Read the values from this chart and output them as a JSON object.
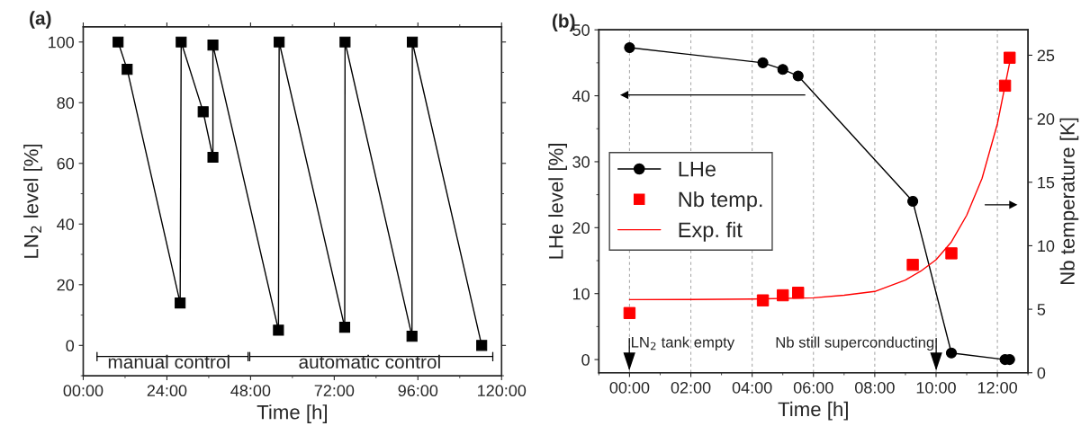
{
  "chart_data": [
    {
      "type": "line",
      "title": "(a)",
      "xlabel": "Time [h]",
      "ylabel": "LN$_{2}$ level [%]",
      "x": [
        10,
        12.6,
        27.8,
        28.1,
        34.4,
        37.2,
        37.2,
        56.0,
        56.2,
        75.0,
        75.1,
        94.3,
        94.4,
        114.3
      ],
      "series": [
        {
          "color": "#000000",
          "marker": "square",
          "line_style": "solid",
          "values": [
            100,
            91,
            14,
            100,
            77,
            62,
            99,
            5,
            100,
            6,
            100,
            3,
            100,
            0
          ]
        }
      ],
      "xlim": [
        0,
        120
      ],
      "ylim": [
        -10,
        105
      ],
      "xticks": [
        {
          "value": 0,
          "label": "00:00"
        },
        {
          "value": 12,
          "label": null
        },
        {
          "value": 24,
          "label": "24:00"
        },
        {
          "value": 36,
          "label": null
        },
        {
          "value": 48,
          "label": "48:00"
        },
        {
          "value": 60,
          "label": null
        },
        {
          "value": 72,
          "label": "72:00"
        },
        {
          "value": 84,
          "label": null
        },
        {
          "value": 96,
          "label": "96:00"
        },
        {
          "value": 108,
          "label": null
        },
        {
          "value": 120,
          "label": "120:00"
        }
      ],
      "yticks": [
        {
          "value": -10,
          "label": null
        },
        0,
        {
          "value": 10,
          "label": null
        },
        20,
        {
          "value": 30,
          "label": null
        },
        40,
        {
          "value": 50,
          "label": null
        },
        60,
        {
          "value": 70,
          "label": null
        },
        80,
        {
          "value": 90,
          "label": null
        },
        100
      ],
      "annotations": [
        "manual control",
        "automatic control"
      ],
      "grid": false,
      "legend": false
    },
    {
      "type": "line",
      "title": "(b)",
      "xlabel": "Time [h]",
      "ylabel": "LHe level [%]",
      "y2label": "Nb temperature [K]",
      "series": [
        {
          "name": "LHe",
          "type": "line",
          "color": "#000000",
          "marker": "circle",
          "line_style": "solid",
          "x": [
            0,
            4.35,
            5.0,
            5.5,
            9.24,
            10.5,
            12.25,
            12.4
          ],
          "values": [
            47.3,
            45.0,
            44.0,
            43.0,
            24.0,
            1.0,
            0,
            0
          ]
        },
        {
          "name": "Nb temp.",
          "type": "scatter",
          "color": "#ff0000",
          "marker": "square",
          "axis": "y2",
          "x": [
            0,
            4.35,
            5.0,
            5.5,
            9.24,
            10.5,
            12.25,
            12.4
          ],
          "values": [
            4.7,
            5.7,
            6.1,
            6.3,
            8.5,
            9.4,
            22.6,
            24.8
          ]
        },
        {
          "name": "Exp. fit",
          "type": "line",
          "color": "#ff0000",
          "marker": "none",
          "line_style": "solid",
          "axis": "y2",
          "x": [
            0,
            2,
            4,
            6,
            7,
            8,
            9,
            9.5,
            10,
            10.5,
            11,
            11.5,
            12,
            12.4
          ],
          "values": [
            5.76,
            5.77,
            5.8,
            5.9,
            6.1,
            6.4,
            7.3,
            8.0,
            8.9,
            10.3,
            12.4,
            15.3,
            19.6,
            24.4
          ]
        }
      ],
      "xlim": [
        -1,
        13
      ],
      "ylim": [
        -2,
        50
      ],
      "y2lim": [
        0,
        27
      ],
      "xticks": [
        {
          "value": -1,
          "label": null
        },
        {
          "value": 0,
          "label": "00:00"
        },
        {
          "value": 1,
          "label": null
        },
        {
          "value": 2,
          "label": "02:00"
        },
        {
          "value": 3,
          "label": null
        },
        {
          "value": 4,
          "label": "04:00"
        },
        {
          "value": 5,
          "label": null
        },
        {
          "value": 6,
          "label": "06:00"
        },
        {
          "value": 7,
          "label": null
        },
        {
          "value": 8,
          "label": "08:00"
        },
        {
          "value": 9,
          "label": null
        },
        {
          "value": 10,
          "label": "10:00"
        },
        {
          "value": 11,
          "label": null
        },
        {
          "value": 12,
          "label": "12:00"
        },
        {
          "value": 13,
          "label": null
        }
      ],
      "yticks": [
        0,
        {
          "value": 5,
          "label": null
        },
        10,
        {
          "value": 15,
          "label": null
        },
        20,
        {
          "value": 25,
          "label": null
        },
        30,
        {
          "value": 35,
          "label": null
        },
        40,
        {
          "value": 45,
          "label": null
        },
        50
      ],
      "y2ticks": [
        0,
        5,
        10,
        15,
        20,
        25
      ],
      "annotations": [
        "LN$_{2}$ tank empty",
        "Nb still superconducting"
      ],
      "grid": "x",
      "legend": "center left"
    }
  ]
}
